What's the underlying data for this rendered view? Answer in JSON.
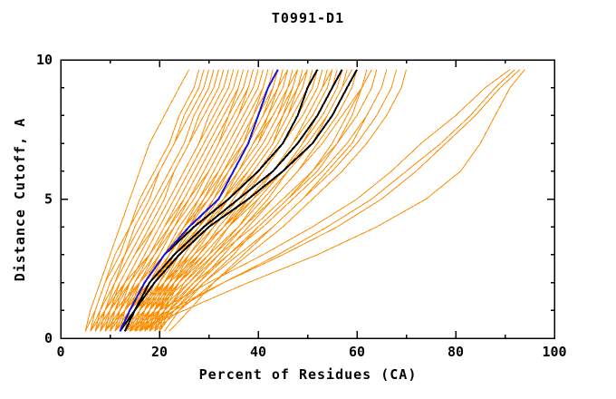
{
  "window": {
    "title": "T0991-D1"
  },
  "chart_data": {
    "type": "line",
    "title": "T0991-D1",
    "xlabel": "Percent of Residues (CA)",
    "ylabel": "Distance Cutoff, A",
    "xlim": [
      0,
      100
    ],
    "ylim": [
      0,
      10
    ],
    "x_major_ticks": [
      0,
      20,
      40,
      60,
      80,
      100
    ],
    "x_minor_ticks": [
      10,
      30,
      50,
      70,
      90
    ],
    "y_major_ticks": [
      0,
      5,
      10
    ],
    "y_minor_ticks": [
      1,
      2,
      3,
      4,
      6,
      7,
      8,
      9
    ],
    "grid": false,
    "legend": "none",
    "tick_style": "inward-mirrored",
    "colors": {
      "orange": "#ff8c00",
      "black": "#000000",
      "blue": "#1414dd"
    },
    "series_meaning": {
      "orange": "prediction models (thin)",
      "black": "highlighted models (thick)",
      "blue": "highlighted model (thick)"
    },
    "y_anchors": [
      0.25,
      1,
      2,
      3,
      4,
      5,
      6,
      7,
      8,
      9,
      9.65
    ],
    "series": [
      {
        "color": "orange",
        "width": 1,
        "x": [
          5,
          6,
          8,
          10,
          12,
          14,
          16,
          18,
          21,
          24,
          26
        ]
      },
      {
        "color": "orange",
        "width": 1,
        "x": [
          5,
          7,
          9,
          11,
          14,
          17,
          20,
          23,
          26,
          29,
          30
        ]
      },
      {
        "color": "orange",
        "width": 1,
        "x": [
          6,
          7,
          9,
          12,
          14,
          16,
          19,
          22,
          24,
          27,
          28
        ]
      },
      {
        "color": "orange",
        "width": 1,
        "x": [
          6,
          8,
          11,
          14,
          17,
          20,
          23,
          26,
          29,
          32,
          33
        ]
      },
      {
        "color": "orange",
        "width": 1,
        "x": [
          7,
          8,
          10,
          13,
          16,
          19,
          22,
          25,
          27,
          30,
          31
        ]
      },
      {
        "color": "orange",
        "width": 1,
        "x": [
          7,
          9,
          12,
          15,
          19,
          22,
          25,
          28,
          31,
          34,
          35
        ]
      },
      {
        "color": "orange",
        "width": 1,
        "x": [
          8,
          9,
          11,
          13,
          15,
          18,
          20,
          23,
          25,
          28,
          29
        ]
      },
      {
        "color": "orange",
        "width": 1,
        "x": [
          8,
          10,
          13,
          16,
          19,
          22,
          25,
          28,
          30,
          33,
          34
        ]
      },
      {
        "color": "orange",
        "width": 1,
        "x": [
          8,
          11,
          14,
          18,
          21,
          25,
          28,
          31,
          34,
          37,
          38
        ]
      },
      {
        "color": "orange",
        "width": 1,
        "x": [
          9,
          10,
          12,
          15,
          18,
          21,
          23,
          26,
          28,
          31,
          32
        ]
      },
      {
        "color": "orange",
        "width": 1,
        "x": [
          9,
          11,
          14,
          17,
          20,
          23,
          26,
          29,
          32,
          35,
          36
        ]
      },
      {
        "color": "orange",
        "width": 1,
        "x": [
          9,
          12,
          15,
          19,
          23,
          26,
          30,
          33,
          36,
          39,
          40
        ]
      },
      {
        "color": "orange",
        "width": 1,
        "x": [
          10,
          11,
          13,
          16,
          19,
          22,
          25,
          28,
          30,
          33,
          34
        ]
      },
      {
        "color": "orange",
        "width": 1,
        "x": [
          10,
          12,
          15,
          18,
          22,
          25,
          28,
          31,
          34,
          37,
          38
        ]
      },
      {
        "color": "orange",
        "width": 1,
        "x": [
          10,
          13,
          17,
          21,
          25,
          28,
          32,
          35,
          38,
          41,
          42
        ]
      },
      {
        "color": "orange",
        "width": 1,
        "x": [
          11,
          12,
          14,
          17,
          20,
          23,
          26,
          29,
          32,
          35,
          36
        ]
      },
      {
        "color": "orange",
        "width": 1,
        "x": [
          11,
          13,
          16,
          20,
          23,
          27,
          30,
          33,
          36,
          39,
          40
        ]
      },
      {
        "color": "orange",
        "width": 1,
        "x": [
          11,
          14,
          18,
          22,
          26,
          30,
          33,
          37,
          40,
          43,
          44
        ]
      },
      {
        "color": "orange",
        "width": 1,
        "x": [
          12,
          13,
          15,
          18,
          21,
          24,
          27,
          30,
          33,
          36,
          37
        ]
      },
      {
        "color": "orange",
        "width": 1,
        "x": [
          12,
          14,
          17,
          21,
          24,
          28,
          31,
          34,
          37,
          40,
          41
        ]
      },
      {
        "color": "orange",
        "width": 1,
        "x": [
          12,
          15,
          19,
          23,
          27,
          31,
          34,
          38,
          41,
          44,
          45
        ]
      },
      {
        "color": "orange",
        "width": 1,
        "x": [
          13,
          14,
          16,
          19,
          22,
          25,
          28,
          31,
          34,
          37,
          38
        ]
      },
      {
        "color": "orange",
        "width": 1,
        "x": [
          13,
          15,
          18,
          22,
          26,
          29,
          33,
          36,
          39,
          42,
          43
        ]
      },
      {
        "color": "orange",
        "width": 1,
        "x": [
          13,
          16,
          20,
          24,
          28,
          32,
          36,
          39,
          43,
          46,
          47
        ]
      },
      {
        "color": "orange",
        "width": 1,
        "x": [
          14,
          15,
          17,
          20,
          23,
          26,
          29,
          32,
          35,
          38,
          39
        ]
      },
      {
        "color": "orange",
        "width": 1,
        "x": [
          14,
          16,
          19,
          23,
          27,
          31,
          34,
          38,
          41,
          43,
          44
        ]
      },
      {
        "color": "orange",
        "width": 1,
        "x": [
          14,
          17,
          21,
          25,
          29,
          33,
          37,
          41,
          44,
          47,
          48
        ]
      },
      {
        "color": "orange",
        "width": 1,
        "x": [
          15,
          16,
          18,
          21,
          24,
          28,
          31,
          34,
          37,
          40,
          41
        ]
      },
      {
        "color": "orange",
        "width": 1,
        "x": [
          15,
          17,
          20,
          24,
          28,
          32,
          36,
          39,
          42,
          45,
          46
        ]
      },
      {
        "color": "orange",
        "width": 1,
        "x": [
          15,
          18,
          22,
          26,
          31,
          35,
          39,
          43,
          46,
          49,
          50
        ]
      },
      {
        "color": "orange",
        "width": 1,
        "x": [
          16,
          17,
          19,
          22,
          25,
          29,
          32,
          35,
          38,
          41,
          42
        ]
      },
      {
        "color": "orange",
        "width": 1,
        "x": [
          16,
          18,
          21,
          25,
          29,
          33,
          37,
          41,
          44,
          46,
          47
        ]
      },
      {
        "color": "orange",
        "width": 1,
        "x": [
          16,
          19,
          23,
          28,
          32,
          37,
          41,
          45,
          48,
          51,
          52
        ]
      },
      {
        "color": "orange",
        "width": 1,
        "x": [
          17,
          18,
          20,
          23,
          26,
          30,
          33,
          37,
          40,
          43,
          44
        ]
      },
      {
        "color": "orange",
        "width": 1,
        "x": [
          17,
          19,
          22,
          26,
          30,
          34,
          38,
          42,
          45,
          48,
          49
        ]
      },
      {
        "color": "orange",
        "width": 1,
        "x": [
          17,
          20,
          24,
          29,
          34,
          38,
          43,
          47,
          50,
          53,
          54
        ]
      },
      {
        "color": "orange",
        "width": 1,
        "x": [
          18,
          19,
          21,
          24,
          28,
          31,
          35,
          38,
          41,
          44,
          46
        ]
      },
      {
        "color": "orange",
        "width": 1,
        "x": [
          18,
          20,
          23,
          27,
          31,
          36,
          40,
          44,
          47,
          50,
          51
        ]
      },
      {
        "color": "orange",
        "width": 1,
        "x": [
          18,
          21,
          26,
          31,
          36,
          40,
          45,
          49,
          52,
          55,
          56
        ]
      },
      {
        "color": "orange",
        "width": 1,
        "x": [
          19,
          20,
          22,
          25,
          29,
          33,
          36,
          40,
          43,
          46,
          48
        ]
      },
      {
        "color": "orange",
        "width": 1,
        "x": [
          19,
          21,
          24,
          28,
          33,
          37,
          41,
          45,
          49,
          52,
          53
        ]
      },
      {
        "color": "orange",
        "width": 1,
        "x": [
          19,
          22,
          27,
          32,
          37,
          42,
          46,
          51,
          54,
          57,
          58
        ]
      },
      {
        "color": "orange",
        "width": 1,
        "x": [
          20,
          21,
          23,
          26,
          30,
          34,
          38,
          42,
          45,
          48,
          50
        ]
      },
      {
        "color": "orange",
        "width": 1,
        "x": [
          20,
          22,
          25,
          30,
          34,
          39,
          43,
          47,
          51,
          54,
          55
        ]
      },
      {
        "color": "orange",
        "width": 1,
        "x": [
          20,
          23,
          28,
          33,
          38,
          43,
          48,
          52,
          56,
          59,
          60
        ]
      },
      {
        "color": "orange",
        "width": 1,
        "x": [
          12,
          14,
          18,
          23,
          28,
          33,
          38,
          42,
          45,
          48,
          49
        ]
      },
      {
        "color": "orange",
        "width": 1,
        "x": [
          13,
          16,
          21,
          26,
          31,
          36,
          41,
          45,
          48,
          51,
          52
        ]
      },
      {
        "color": "orange",
        "width": 1,
        "x": [
          14,
          18,
          23,
          29,
          34,
          40,
          45,
          49,
          53,
          56,
          57
        ]
      },
      {
        "color": "orange",
        "width": 1,
        "x": [
          15,
          19,
          25,
          31,
          37,
          43,
          48,
          53,
          57,
          61,
          62
        ]
      },
      {
        "color": "orange",
        "width": 1,
        "x": [
          16,
          20,
          26,
          32,
          39,
          45,
          51,
          56,
          60,
          63,
          64
        ]
      },
      {
        "color": "orange",
        "width": 1,
        "x": [
          17,
          21,
          27,
          34,
          41,
          47,
          53,
          58,
          62,
          65,
          66
        ]
      },
      {
        "color": "orange",
        "width": 1,
        "x": [
          18,
          23,
          29,
          36,
          43,
          49,
          55,
          60,
          64,
          67,
          68
        ]
      },
      {
        "color": "orange",
        "width": 1,
        "x": [
          19,
          24,
          31,
          38,
          45,
          51,
          57,
          62,
          66,
          69,
          70
        ]
      },
      {
        "color": "orange",
        "width": 1,
        "x": [
          10,
          13,
          18,
          23,
          28,
          32,
          36,
          40,
          42,
          44,
          45
        ]
      },
      {
        "color": "orange",
        "width": 1,
        "x": [
          8,
          11,
          16,
          21,
          26,
          30,
          34,
          37,
          39,
          41,
          42
        ]
      },
      {
        "color": "orange",
        "width": 1,
        "x": [
          6,
          9,
          13,
          18,
          22,
          26,
          29,
          32,
          34,
          36,
          37
        ]
      },
      {
        "color": "orange",
        "width": 1,
        "x": [
          21,
          24,
          29,
          35,
          40,
          46,
          51,
          55,
          58,
          61,
          62
        ]
      },
      {
        "color": "orange",
        "width": 1,
        "x": [
          22,
          26,
          31,
          37,
          43,
          49,
          54,
          59,
          62,
          65,
          66
        ]
      },
      {
        "color": "orange",
        "width": 1,
        "x": [
          11,
          15,
          21,
          27,
          33,
          39,
          45,
          50,
          54,
          57,
          58
        ]
      },
      {
        "color": "orange",
        "width": 1,
        "x": [
          9,
          13,
          18,
          24,
          29,
          34,
          39,
          43,
          45,
          47,
          48
        ]
      },
      {
        "color": "orange",
        "width": 1,
        "x": [
          7,
          10,
          14,
          18,
          22,
          26,
          30,
          33,
          36,
          38,
          39
        ]
      },
      {
        "color": "orange",
        "width": 1,
        "x": [
          9,
          12,
          16,
          21,
          25,
          30,
          34,
          38,
          41,
          43,
          44
        ]
      },
      {
        "color": "orange",
        "width": 1,
        "x": [
          11,
          14,
          19,
          24,
          29,
          34,
          39,
          43,
          46,
          48,
          50
        ]
      },
      {
        "color": "orange",
        "width": 1,
        "x": [
          13,
          17,
          22,
          28,
          33,
          38,
          43,
          47,
          50,
          53,
          55
        ]
      },
      {
        "color": "orange",
        "width": 1,
        "x": [
          15,
          19,
          24,
          30,
          36,
          41,
          46,
          51,
          54,
          57,
          59
        ]
      },
      {
        "color": "orange",
        "width": 1,
        "x": [
          17,
          22,
          28,
          34,
          40,
          46,
          52,
          56,
          59,
          61,
          63
        ]
      },
      {
        "color": "orange",
        "width": 1,
        "x": [
          15,
          25,
          38,
          52,
          64,
          74,
          81,
          85,
          88,
          91,
          94
        ]
      },
      {
        "color": "orange",
        "width": 1,
        "x": [
          14,
          22,
          33,
          45,
          56,
          65,
          72,
          78,
          84,
          89,
          93
        ]
      },
      {
        "color": "orange",
        "width": 1,
        "x": [
          13,
          20,
          30,
          41,
          51,
          60,
          67,
          73,
          80,
          86,
          91
        ]
      },
      {
        "color": "orange",
        "width": 1,
        "x": [
          16,
          23,
          33,
          44,
          54,
          63,
          70,
          77,
          83,
          88,
          92
        ]
      },
      {
        "color": "black",
        "width": 2,
        "x": [
          12,
          14,
          17,
          21,
          27,
          34,
          40,
          45,
          48,
          50,
          52
        ]
      },
      {
        "color": "black",
        "width": 2,
        "x": [
          12,
          15,
          18,
          23,
          29,
          36,
          43,
          48,
          52,
          55,
          57
        ]
      },
      {
        "color": "black",
        "width": 2,
        "x": [
          13,
          15,
          19,
          24,
          30,
          38,
          45,
          51,
          55,
          58,
          60
        ]
      },
      {
        "color": "blue",
        "width": 2,
        "x": [
          12,
          14,
          17,
          21,
          26,
          32,
          35,
          38,
          40,
          42,
          44
        ]
      }
    ]
  }
}
